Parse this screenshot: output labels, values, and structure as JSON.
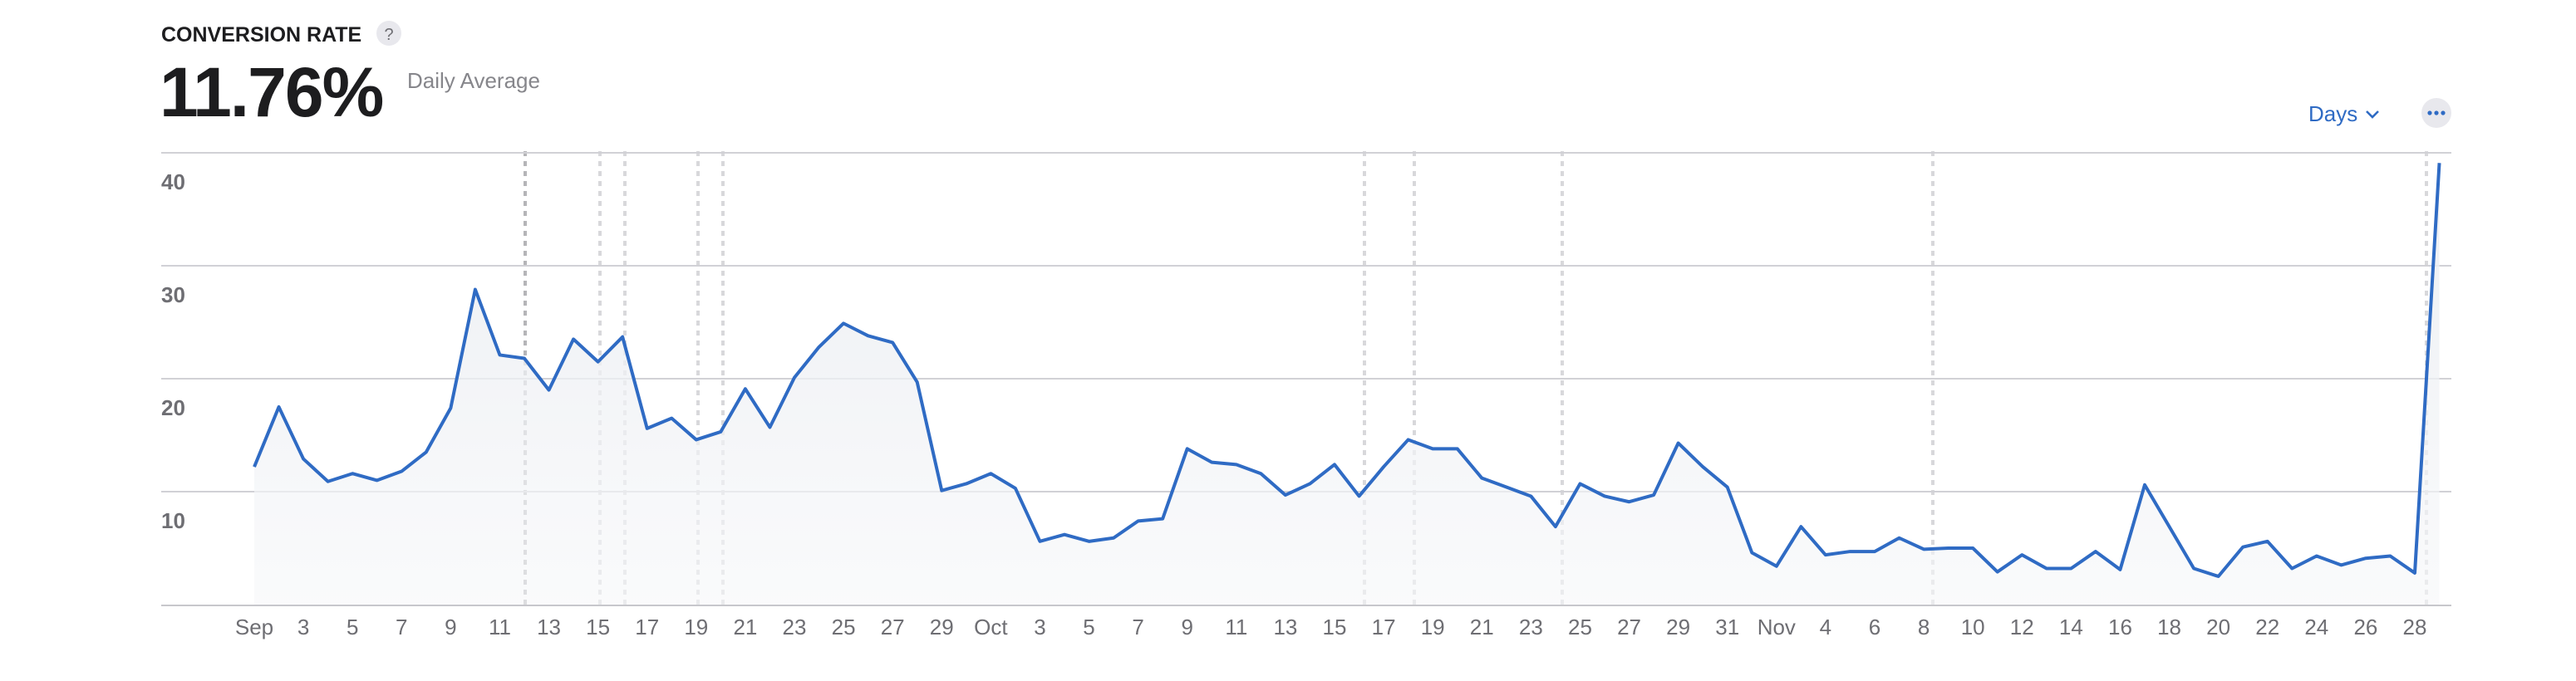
{
  "header": {
    "title": "CONVERSION RATE",
    "help": "?",
    "value": "11.76%",
    "value_caption": "Daily Average",
    "period_button": "Days"
  },
  "chart_data": {
    "type": "line",
    "categories": [
      "Sep",
      null,
      "3",
      null,
      "5",
      null,
      "7",
      null,
      "9",
      null,
      "11",
      null,
      "13",
      null,
      "15",
      null,
      "17",
      null,
      "19",
      null,
      "21",
      null,
      "23",
      null,
      "25",
      null,
      "27",
      null,
      "29",
      null,
      "Oct",
      null,
      "3",
      null,
      "5",
      null,
      "7",
      null,
      "9",
      null,
      "11",
      null,
      "13",
      null,
      "15",
      null,
      "17",
      null,
      "19",
      null,
      "21",
      null,
      "23",
      null,
      "25",
      null,
      "27",
      null,
      "29",
      null,
      "31",
      null,
      "Nov",
      null,
      "4",
      null,
      "6",
      null,
      "8",
      null,
      "10",
      null,
      "12",
      null,
      "14",
      null,
      "16",
      null,
      "18",
      null,
      "20",
      null,
      "22",
      null,
      "24",
      null,
      "26",
      null,
      "28",
      null
    ],
    "values": [
      12.2,
      17.5,
      12.9,
      10.9,
      11.6,
      11.0,
      11.8,
      13.5,
      17.4,
      27.9,
      22.1,
      21.8,
      19.0,
      23.5,
      21.5,
      23.7,
      15.6,
      16.5,
      14.6,
      15.3,
      19.1,
      15.7,
      20.1,
      22.8,
      24.9,
      23.8,
      23.2,
      19.7,
      10.1,
      10.7,
      11.6,
      10.3,
      5.6,
      6.2,
      5.6,
      5.9,
      7.4,
      7.6,
      13.8,
      12.6,
      12.4,
      11.6,
      9.7,
      10.7,
      12.4,
      9.6,
      12.2,
      14.6,
      13.8,
      13.8,
      11.2,
      10.4,
      9.6,
      6.9,
      10.7,
      9.6,
      9.1,
      9.7,
      14.3,
      12.2,
      10.4,
      4.6,
      3.4,
      6.9,
      4.4,
      4.7,
      4.7,
      5.9,
      4.9,
      5.0,
      5.0,
      2.9,
      4.4,
      3.2,
      3.2,
      4.7,
      3.1,
      10.6,
      6.9,
      3.2,
      2.5,
      5.1,
      5.6,
      3.2,
      4.3,
      3.5,
      4.1,
      4.3,
      2.8,
      39.1
    ],
    "color": "#2f6bc4",
    "ylim": [
      0,
      40
    ],
    "yticks": [
      10,
      20,
      30,
      40
    ],
    "grid": true
  }
}
